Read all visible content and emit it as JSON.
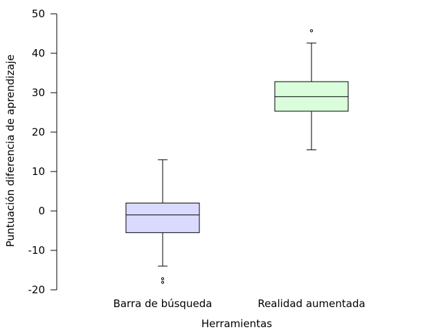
{
  "chart_data": {
    "type": "box",
    "xlabel": "Herramientas",
    "ylabel": "Puntuación diferencia de aprendizaje",
    "ylim": [
      -20,
      50
    ],
    "yticks": [
      -20,
      -10,
      0,
      10,
      20,
      30,
      40,
      50
    ],
    "y_tick_labels": [
      "-20",
      "-10",
      "0",
      "10",
      "20",
      "30",
      "40",
      "50"
    ],
    "grid": false,
    "categories": [
      "Barra de búsqueda",
      "Realidad aumentada"
    ],
    "series": [
      {
        "category": "Barra de búsqueda",
        "whisker_low": -14,
        "q1": -5.5,
        "median": -1,
        "q3": 2,
        "whisker_high": 13,
        "outliers": [
          -17.2,
          -18.1
        ],
        "color": "#dadaff"
      },
      {
        "category": "Realidad aumentada",
        "whisker_low": 15.5,
        "q1": 25.3,
        "median": 29,
        "q3": 32.8,
        "whisker_high": 42.6,
        "outliers": [
          45.7
        ],
        "color": "#dafedb"
      }
    ]
  }
}
